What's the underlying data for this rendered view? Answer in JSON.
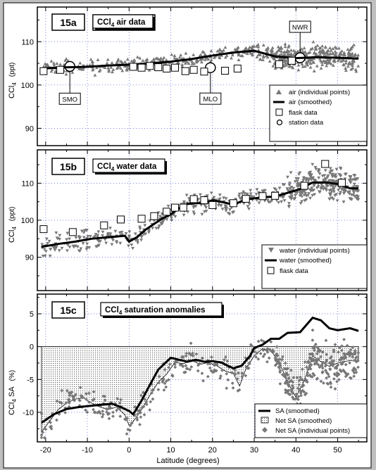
{
  "chart_data": [
    {
      "type": "scatter",
      "panel_label": "15a",
      "title": "CCl4 air data",
      "title_main": "CCl",
      "title_sub": "4",
      "title_rest": " air data",
      "ylabel_main": "CCl",
      "ylabel_sub": "4",
      "ylabel_unit": "(ppt)",
      "ylim": [
        86,
        118
      ],
      "yticks": [
        90,
        100,
        110
      ],
      "xlim": [
        -22,
        57
      ],
      "grid": true,
      "legend_position": "bottom-right",
      "legend": [
        "air (individual points)",
        "air (smoothed)",
        "flask data",
        "station data"
      ],
      "series": [
        {
          "name": "air (smoothed)",
          "x": [
            -21,
            -15,
            -10,
            -5,
            0,
            5,
            10,
            15,
            20,
            25,
            30,
            35,
            40,
            45,
            50,
            55
          ],
          "y": [
            103.8,
            104.1,
            104.2,
            104.5,
            104.7,
            105.0,
            105.4,
            106.0,
            106.8,
            107.5,
            107.9,
            106.6,
            106.2,
            106.4,
            106.3,
            106.1
          ]
        },
        {
          "name": "flask data",
          "x": [
            -20.5,
            -16.5,
            1,
            3,
            5,
            7,
            9,
            11,
            13.5,
            15.5,
            18,
            23,
            26,
            36,
            39
          ],
          "y": [
            103.2,
            103.5,
            104.2,
            104.0,
            104.4,
            104.1,
            103.8,
            104.0,
            103.2,
            103.5,
            103.1,
            103.3,
            103.8,
            104.8,
            105.6
          ]
        },
        {
          "name": "station data",
          "x": [
            -14.2,
            19.5,
            41
          ],
          "y": [
            104.3,
            104.0,
            106.3
          ]
        }
      ],
      "annotations": [
        {
          "text": "SMO",
          "x": -14.2,
          "y": 104.3
        },
        {
          "text": "MLO",
          "x": 19.5,
          "y": 104.0
        },
        {
          "text": "NWR",
          "x": 41,
          "y": 106.3
        }
      ]
    },
    {
      "type": "scatter",
      "panel_label": "15b",
      "title": "CCl4 water data",
      "title_main": "CCl",
      "title_sub": "4",
      "title_rest": " water data",
      "ylabel_main": "CCl",
      "ylabel_sub": "4",
      "ylabel_unit": "(ppt)",
      "ylim": [
        81,
        119
      ],
      "yticks": [
        90,
        100,
        110
      ],
      "xlim": [
        -22,
        57
      ],
      "grid": true,
      "legend_position": "bottom-right",
      "legend": [
        "water (individual points)",
        "water (smoothed)",
        "flask data"
      ],
      "series": [
        {
          "name": "water (smoothed)",
          "x": [
            -21,
            -17,
            -13,
            -9,
            -5,
            -1,
            0,
            2,
            4,
            6,
            8,
            10,
            12,
            14,
            16,
            18,
            20,
            22,
            25,
            28,
            32,
            35,
            38,
            41,
            44,
            47,
            50,
            53,
            55
          ],
          "y": [
            92.8,
            93.6,
            94.2,
            95.0,
            95.4,
            95.8,
            94.2,
            95.5,
            97.5,
            99.0,
            100.5,
            101.6,
            103.2,
            104.4,
            104.6,
            104.6,
            105.4,
            105.0,
            104.2,
            105.6,
            106.2,
            106.4,
            107.4,
            108.4,
            110.2,
            110.2,
            109.8,
            108.6,
            108.6
          ]
        },
        {
          "name": "flask data",
          "x": [
            -20.5,
            -13.5,
            -6,
            -2,
            3,
            6,
            9,
            11,
            13,
            15.5,
            18,
            20,
            25,
            28,
            32,
            35,
            42,
            47,
            51
          ],
          "y": [
            97.6,
            96.8,
            98.6,
            100.2,
            100.4,
            101.1,
            102.3,
            103.4,
            103.4,
            105.7,
            105.4,
            104.1,
            104.6,
            105.8,
            106.5,
            106.6,
            109.3,
            115.2,
            110.1
          ]
        }
      ]
    },
    {
      "type": "scatter",
      "panel_label": "15c",
      "title": "CCl4 saturation anomalies",
      "title_main": "CCl",
      "title_sub": "4",
      "title_rest": " saturation anomalies",
      "ylabel_main": "CCl",
      "ylabel_sub": "4",
      "ylabel_tail": " SA",
      "ylabel_unit": "(%)",
      "xlabel": "Latitude (degrees)",
      "ylim": [
        -14.5,
        8
      ],
      "yticks": [
        -10,
        -5,
        0,
        5
      ],
      "xlim": [
        -22,
        57
      ],
      "xticks": [
        -20,
        -10,
        0,
        10,
        20,
        30,
        40,
        50
      ],
      "grid": true,
      "legend_position": "bottom-right",
      "legend": [
        "SA (smoothed)",
        "Net SA (smoothed)",
        "Net SA (individual points)"
      ],
      "series": [
        {
          "name": "SA (smoothed)",
          "x": [
            -21,
            -18,
            -15,
            -12,
            -9,
            -6,
            -4,
            -2,
            0,
            1,
            3,
            5,
            7,
            10,
            12,
            14,
            16,
            18,
            20,
            22,
            25,
            27,
            29,
            30,
            32,
            34,
            36,
            38,
            41,
            44,
            46,
            48,
            50,
            53,
            55
          ],
          "y": [
            -11.6,
            -10.3,
            -9.5,
            -9.2,
            -9.0,
            -8.8,
            -8.7,
            -9.2,
            -9.8,
            -10.3,
            -8.2,
            -5.8,
            -3.5,
            -1.7,
            -2.0,
            -2.3,
            -2.0,
            -2.3,
            -2.2,
            -2.4,
            -3.3,
            -2.9,
            -1.4,
            -0.2,
            0.3,
            1.2,
            1.2,
            2.1,
            2.2,
            4.4,
            4.0,
            2.8,
            2.5,
            2.8,
            2.4
          ]
        },
        {
          "name": "Net SA (smoothed)",
          "x": [
            -21,
            -17,
            -15,
            -13,
            -11,
            -9,
            -7,
            -5,
            -3,
            -1,
            0,
            1,
            3,
            5,
            7,
            9,
            11,
            13,
            15,
            17,
            19,
            21,
            23,
            25,
            26.5,
            28,
            30,
            32,
            34,
            36,
            38,
            40,
            42,
            44,
            46,
            48,
            50,
            53,
            55
          ],
          "y": [
            -13.0,
            -9.6,
            -8.6,
            -8.0,
            -7.8,
            -8.6,
            -9.2,
            -9.6,
            -9.2,
            -10.4,
            -12.0,
            -11.4,
            -9.6,
            -7.4,
            -5.4,
            -4.2,
            -2.4,
            -2.6,
            -2.1,
            -2.7,
            -2.4,
            -2.9,
            -3.7,
            -4.1,
            -6.0,
            -3.4,
            -1.4,
            -0.3,
            -0.6,
            -2.4,
            -5.4,
            -7.7,
            -5.2,
            -1.4,
            -2.3,
            -3.0,
            -2.5,
            -2.1,
            -2.3
          ]
        }
      ]
    }
  ]
}
